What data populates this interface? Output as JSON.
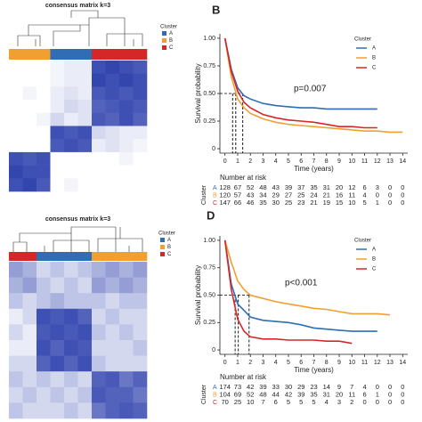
{
  "chart_data": [
    {
      "type": "heatmap",
      "title": "consensus matrix k=3",
      "legend_title": "Cluster",
      "clusters": [
        "A",
        "B",
        "C"
      ],
      "colors": [
        "#2f6db5",
        "#f0a030",
        "#d62728"
      ],
      "column_clusters": [
        "B",
        "B",
        "B",
        "A",
        "A",
        "A",
        "C",
        "C",
        "C",
        "C"
      ],
      "matrix": [
        [
          0,
          0,
          0,
          0.05,
          0.1,
          0.1,
          0.9,
          0.95,
          0.9,
          0.85
        ],
        [
          0,
          0,
          0,
          0.05,
          0.1,
          0.1,
          0.95,
          0.9,
          0.95,
          0.9
        ],
        [
          0,
          0.05,
          0,
          0.1,
          0.15,
          0.1,
          0.85,
          0.9,
          0.85,
          0.9
        ],
        [
          0,
          0,
          0,
          0.1,
          0.2,
          0.15,
          0.8,
          0.85,
          0.9,
          0.85
        ],
        [
          0,
          0,
          0.05,
          0.2,
          0.1,
          0.15,
          0.85,
          0.8,
          0.9,
          0.8
        ],
        [
          0,
          0,
          0,
          0.9,
          0.85,
          0.9,
          0.2,
          0.15,
          0.1,
          0.1
        ],
        [
          0,
          0,
          0,
          0.85,
          0.9,
          0.85,
          0.1,
          0.15,
          0.1,
          0.05
        ],
        [
          0.9,
          0.85,
          0.9,
          0,
          0,
          0,
          0,
          0,
          0.05,
          0
        ],
        [
          0.95,
          0.9,
          0.9,
          0,
          0,
          0,
          0,
          0,
          0,
          0
        ],
        [
          0.9,
          0.95,
          0.85,
          0,
          0.05,
          0,
          0,
          0,
          0,
          0
        ]
      ]
    },
    {
      "type": "line",
      "panel": "B",
      "xlabel": "Time (years)",
      "ylabel": "Survival probability",
      "legend_title": "Cluster",
      "annotation": "p=0.007",
      "x": [
        0,
        0.5,
        1,
        1.5,
        2,
        3,
        4,
        5,
        6,
        7,
        8,
        9,
        10,
        11,
        12,
        13,
        14
      ],
      "xlim": [
        -0.4,
        14.4
      ],
      "xticks": [
        0,
        1,
        2,
        3,
        4,
        5,
        6,
        7,
        8,
        9,
        10,
        11,
        12,
        13,
        14
      ],
      "ylim": [
        -0.04,
        1.04
      ],
      "yticks": [
        0,
        {
          "value": 0.25,
          "label": "0.25"
        },
        {
          "value": 0.5,
          "label": "0.50"
        },
        {
          "value": 0.75,
          "label": "0.75"
        },
        {
          "value": 1,
          "label": "1.00"
        }
      ],
      "medians": [
        0.6,
        0.85,
        1.4
      ],
      "series": [
        {
          "name": "A",
          "color": "#2f6db5",
          "values": [
            1,
            0.72,
            0.55,
            0.48,
            0.45,
            0.41,
            0.39,
            0.38,
            0.37,
            0.37,
            0.36,
            0.36,
            0.36,
            0.36,
            0.36,
            null,
            null
          ]
        },
        {
          "name": "B",
          "color": "#f0a030",
          "values": [
            1,
            0.65,
            0.45,
            0.37,
            0.32,
            0.27,
            0.24,
            0.22,
            0.21,
            0.2,
            0.19,
            0.18,
            0.17,
            0.16,
            0.16,
            0.15,
            0.15
          ]
        },
        {
          "name": "C",
          "color": "#d62728",
          "values": [
            1,
            0.7,
            0.52,
            0.42,
            0.37,
            0.31,
            0.28,
            0.26,
            0.25,
            0.24,
            0.22,
            0.2,
            0.2,
            0.19,
            0.19,
            null,
            null
          ]
        }
      ],
      "risk_table": {
        "title": "Number at risk",
        "ylabel": "Cluster",
        "rows": [
          {
            "name": "A",
            "color": "#2f6db5",
            "values": [
              128,
              67,
              52,
              48,
              43,
              39,
              37,
              35,
              31,
              20,
              12,
              6,
              3,
              0,
              0
            ]
          },
          {
            "name": "B",
            "color": "#f0a030",
            "values": [
              120,
              57,
              43,
              34,
              29,
              27,
              25,
              24,
              21,
              16,
              11,
              4,
              0,
              0,
              0
            ]
          },
          {
            "name": "C",
            "color": "#d62728",
            "values": [
              147,
              66,
              46,
              35,
              30,
              25,
              23,
              21,
              19,
              15,
              10,
              5,
              1,
              0,
              0
            ]
          }
        ]
      }
    },
    {
      "type": "heatmap",
      "title": "consensus matrix k=3",
      "legend_title": "Cluster",
      "clusters": [
        "A",
        "B",
        "C"
      ],
      "colors": [
        "#2f6db5",
        "#f0a030",
        "#d62728"
      ],
      "column_clusters": [
        "C",
        "C",
        "A",
        "A",
        "A",
        "A",
        "B",
        "B",
        "B",
        "B"
      ],
      "matrix": [
        [
          0.5,
          0.4,
          0.2,
          0.3,
          0.2,
          0.3,
          0.4,
          0.5,
          0.4,
          0.5
        ],
        [
          0.4,
          0.5,
          0.3,
          0.2,
          0.3,
          0.2,
          0.5,
          0.4,
          0.5,
          0.4
        ],
        [
          0.3,
          0.2,
          0.3,
          0.4,
          0.3,
          0.3,
          0.3,
          0.2,
          0.3,
          0.3
        ],
        [
          0.1,
          0.2,
          0.9,
          0.85,
          0.9,
          0.8,
          0.2,
          0.3,
          0.2,
          0.2
        ],
        [
          0.2,
          0.1,
          0.85,
          0.9,
          0.85,
          0.9,
          0.3,
          0.2,
          0.3,
          0.2
        ],
        [
          0.1,
          0.1,
          0.9,
          0.8,
          0.9,
          0.85,
          0.2,
          0.2,
          0.2,
          0.3
        ],
        [
          0.2,
          0.2,
          0.8,
          0.9,
          0.8,
          0.9,
          0.3,
          0.2,
          0.2,
          0.2
        ],
        [
          0.3,
          0.2,
          0.3,
          0.2,
          0.3,
          0.2,
          0.8,
          0.85,
          0.7,
          0.8
        ],
        [
          0.2,
          0.3,
          0.2,
          0.3,
          0.2,
          0.3,
          0.85,
          0.8,
          0.8,
          0.7
        ],
        [
          0.3,
          0.2,
          0.2,
          0.2,
          0.3,
          0.2,
          0.7,
          0.8,
          0.85,
          0.8
        ]
      ]
    },
    {
      "type": "line",
      "panel": "D",
      "xlabel": "Time (years)",
      "ylabel": "Survival probability",
      "legend_title": "Cluster",
      "annotation": "p<0.001",
      "x": [
        0,
        0.5,
        1,
        1.5,
        2,
        3,
        4,
        5,
        6,
        7,
        8,
        9,
        10,
        11,
        12,
        13,
        14
      ],
      "xlim": [
        -0.4,
        14.4
      ],
      "xticks": [
        0,
        1,
        2,
        3,
        4,
        5,
        6,
        7,
        8,
        9,
        10,
        11,
        12,
        13,
        14
      ],
      "ylim": [
        -0.04,
        1.04
      ],
      "yticks": [
        0,
        {
          "value": 0.25,
          "label": "0.25"
        },
        {
          "value": 0.5,
          "label": "0.50"
        },
        {
          "value": 0.75,
          "label": "0.75"
        },
        {
          "value": 1,
          "label": "1.00"
        }
      ],
      "medians": [
        0.8,
        1.05,
        1.9
      ],
      "series": [
        {
          "name": "A",
          "color": "#2f6db5",
          "values": [
            1,
            0.6,
            0.42,
            0.36,
            0.3,
            0.27,
            0.26,
            0.25,
            0.23,
            0.2,
            0.19,
            0.18,
            0.17,
            0.17,
            0.17,
            null,
            null
          ]
        },
        {
          "name": "B",
          "color": "#f0a030",
          "values": [
            1,
            0.8,
            0.63,
            0.55,
            0.5,
            0.47,
            0.44,
            0.42,
            0.4,
            0.38,
            0.37,
            0.35,
            0.33,
            0.33,
            0.33,
            0.32,
            null
          ]
        },
        {
          "name": "C",
          "color": "#d62728",
          "values": [
            1,
            0.55,
            0.28,
            0.17,
            0.12,
            0.1,
            0.1,
            0.09,
            0.09,
            0.09,
            0.08,
            0.08,
            0.06,
            null,
            null,
            null,
            null
          ]
        }
      ],
      "risk_table": {
        "title": "Number at risk",
        "ylabel": "Cluster",
        "rows": [
          {
            "name": "A",
            "color": "#2f6db5",
            "values": [
              174,
              73,
              42,
              39,
              33,
              30,
              29,
              23,
              14,
              9,
              7,
              4,
              0,
              0,
              0
            ]
          },
          {
            "name": "B",
            "color": "#f0a030",
            "values": [
              104,
              69,
              52,
              48,
              44,
              42,
              39,
              35,
              31,
              20,
              11,
              6,
              1,
              0,
              0
            ]
          },
          {
            "name": "C",
            "color": "#d62728",
            "values": [
              70,
              25,
              10,
              7,
              6,
              5,
              5,
              5,
              4,
              3,
              2,
              0,
              0,
              0,
              0
            ]
          }
        ]
      }
    }
  ]
}
